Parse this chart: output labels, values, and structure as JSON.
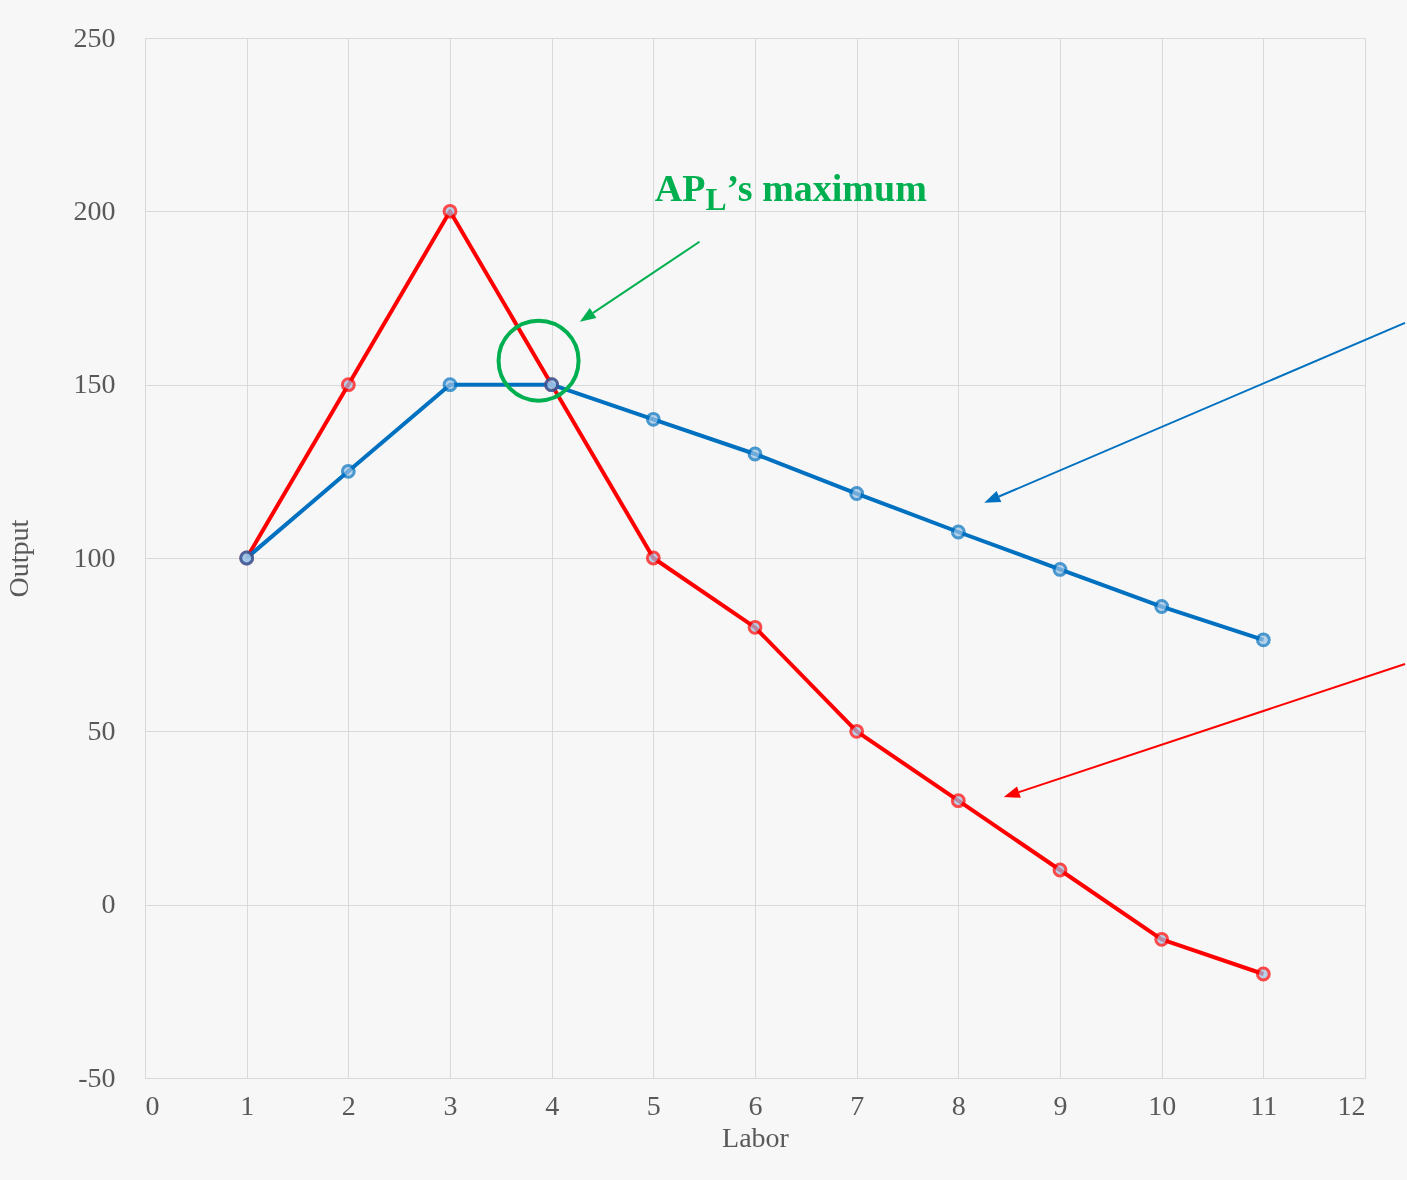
{
  "chart_data": {
    "type": "line",
    "xlabel": "Labor",
    "ylabel": "Output",
    "x": [
      1,
      2,
      3,
      4,
      5,
      6,
      7,
      8,
      9,
      10,
      11
    ],
    "series": [
      {
        "color": "#ff0000",
        "values": [
          100,
          150,
          200,
          150,
          100,
          80,
          50,
          30,
          10,
          -10,
          -20
        ]
      },
      {
        "color": "#0070c0",
        "values": [
          100,
          125,
          150,
          150,
          140,
          130,
          118.6,
          107.5,
          96.7,
          86,
          76.4
        ]
      }
    ],
    "xlim": [
      0,
      12
    ],
    "xticks": [
      0,
      1,
      2,
      3,
      4,
      5,
      6,
      7,
      8,
      9,
      10,
      11,
      12
    ],
    "ylim": [
      -50,
      250
    ],
    "yticks": [
      -50,
      0,
      50,
      100,
      150,
      200,
      250
    ],
    "grid": true,
    "marker": "circle",
    "line_style": "solid",
    "annotations": [
      "AP$_{L}$’s maximum"
    ]
  }
}
